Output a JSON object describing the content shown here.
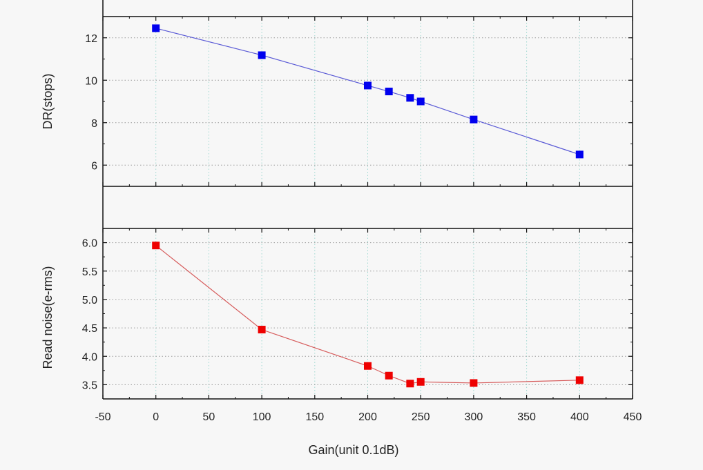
{
  "chart_data": [
    {
      "type": "scatter",
      "ylabel": "DR(stops)",
      "xlim": [
        -50,
        450
      ],
      "ylim": [
        5,
        13
      ],
      "x_ticks": [
        -50,
        0,
        50,
        100,
        150,
        200,
        250,
        300,
        350,
        400,
        450
      ],
      "y_ticks": [
        6,
        8,
        10,
        12
      ],
      "y_tick_labels": [
        "6",
        "8",
        "10",
        "12"
      ],
      "grid": true,
      "series": [
        {
          "color": "#0000ee",
          "line_color": "#5a5ad6",
          "marker": "square",
          "points": [
            {
              "x": 0,
              "y": 12.45
            },
            {
              "x": 100,
              "y": 11.18
            },
            {
              "x": 200,
              "y": 9.75
            },
            {
              "x": 220,
              "y": 9.47
            },
            {
              "x": 240,
              "y": 9.17
            },
            {
              "x": 250,
              "y": 9.0
            },
            {
              "x": 300,
              "y": 8.15
            },
            {
              "x": 400,
              "y": 6.5
            }
          ]
        }
      ]
    },
    {
      "type": "scatter",
      "xlabel": "Gain(unit 0.1dB)",
      "ylabel": "Read noise(e-rms)",
      "xlim": [
        -50,
        450
      ],
      "ylim": [
        3.25,
        6.25
      ],
      "x_ticks": [
        -50,
        0,
        50,
        100,
        150,
        200,
        250,
        300,
        350,
        400,
        450
      ],
      "x_tick_labels": [
        "-50",
        "0",
        "50",
        "100",
        "150",
        "200",
        "250",
        "300",
        "350",
        "400",
        "450"
      ],
      "y_ticks": [
        3.5,
        4.0,
        4.5,
        5.0,
        5.5,
        6.0
      ],
      "y_tick_labels": [
        "3.5",
        "4.0",
        "4.5",
        "5.0",
        "5.5",
        "6.0"
      ],
      "grid": true,
      "series": [
        {
          "color": "#ee0000",
          "line_color": "#d65a5a",
          "marker": "square",
          "points": [
            {
              "x": 0,
              "y": 5.95
            },
            {
              "x": 100,
              "y": 4.47
            },
            {
              "x": 200,
              "y": 3.83
            },
            {
              "x": 220,
              "y": 3.66
            },
            {
              "x": 240,
              "y": 3.52
            },
            {
              "x": 250,
              "y": 3.55
            },
            {
              "x": 300,
              "y": 3.53
            },
            {
              "x": 400,
              "y": 3.58
            }
          ]
        }
      ]
    }
  ]
}
